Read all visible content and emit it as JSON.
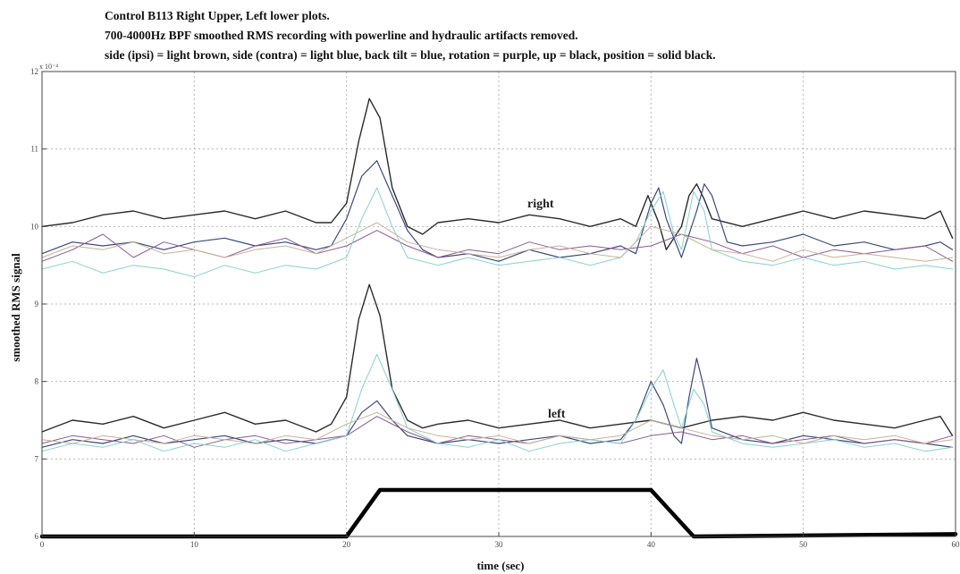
{
  "chart_data": {
    "type": "line",
    "title_lines": [
      "Control B113 Right Upper, Left lower plots.",
      "700-4000Hz BPF smoothed RMS recording with powerline and hydraulic artifacts removed.",
      "side (ipsi) = light brown, side (contra) = light blue, back tilt = blue, rotation = purple, up = black, position = solid black."
    ],
    "xlabel": "time (sec)",
    "ylabel": "smoothed RMS signal",
    "y_exponent_label": "x 10⁻⁴",
    "xlim": [
      0,
      60
    ],
    "ylim": [
      6,
      12
    ],
    "x_ticks": [
      0,
      10,
      20,
      30,
      40,
      50,
      60
    ],
    "x_tick_labels": [
      "0",
      "10",
      "20",
      "30",
      "40",
      "50",
      "60"
    ],
    "y_ticks": [
      6,
      7,
      8,
      9,
      10,
      11,
      12
    ],
    "y_tick_labels": [
      "6",
      "7",
      "8",
      "9",
      "10",
      "11",
      "12"
    ],
    "grid": true,
    "annotations": [
      {
        "text": "right",
        "x": 32,
        "y": 10.3
      },
      {
        "text": "left",
        "x": 34,
        "y": 7.6
      }
    ],
    "colors": {
      "up": "#2b2b2b",
      "back_tilt": "#3b4a7a",
      "rotation": "#8a5a8e",
      "side_contra": "#86d0cf",
      "side_ipsi": "#c7b196",
      "position": "#000000",
      "grid": "#b5b5b5",
      "axis": "#444444"
    },
    "series": [
      {
        "key": "up_right",
        "color_key": "up",
        "width": 1.4,
        "x": [
          0,
          2,
          4,
          6,
          8,
          10,
          12,
          14,
          16,
          18,
          19,
          20,
          20.8,
          21.5,
          22.2,
          23,
          24,
          25,
          26,
          28,
          30,
          32,
          34,
          36,
          38,
          39,
          39.8,
          40.5,
          41,
          42,
          42.5,
          43,
          43.5,
          44,
          46,
          48,
          50,
          52,
          54,
          56,
          58,
          59,
          59.8
        ],
        "y": [
          10.0,
          10.05,
          10.15,
          10.2,
          10.1,
          10.15,
          10.2,
          10.1,
          10.2,
          10.05,
          10.05,
          10.3,
          11.1,
          11.65,
          11.4,
          10.5,
          10.0,
          9.9,
          10.05,
          10.1,
          10.05,
          10.15,
          10.1,
          10.0,
          10.1,
          10.0,
          10.4,
          10.05,
          9.7,
          10.0,
          10.4,
          10.55,
          10.35,
          10.1,
          10.0,
          10.1,
          10.2,
          10.1,
          10.2,
          10.15,
          10.1,
          10.2,
          9.85
        ]
      },
      {
        "key": "back_tilt_right",
        "color_key": "back_tilt",
        "width": 1.2,
        "x": [
          0,
          2,
          4,
          6,
          8,
          10,
          12,
          14,
          16,
          18,
          19,
          20,
          21,
          22,
          23,
          24,
          25,
          26,
          28,
          30,
          32,
          34,
          36,
          38,
          39,
          40,
          40.5,
          41,
          42,
          43,
          43.5,
          44,
          45,
          46,
          48,
          50,
          52,
          54,
          56,
          58,
          59,
          59.8
        ],
        "y": [
          9.65,
          9.8,
          9.75,
          9.8,
          9.7,
          9.8,
          9.85,
          9.75,
          9.8,
          9.7,
          9.75,
          10.1,
          10.65,
          10.85,
          10.4,
          9.95,
          9.7,
          9.6,
          9.65,
          9.55,
          9.7,
          9.6,
          9.65,
          9.75,
          9.65,
          10.3,
          10.5,
          10.1,
          9.6,
          10.2,
          10.55,
          10.4,
          9.8,
          9.75,
          9.8,
          9.9,
          9.75,
          9.8,
          9.7,
          9.75,
          9.8,
          9.7
        ]
      },
      {
        "key": "rotation_right",
        "color_key": "rotation",
        "width": 1.0,
        "x": [
          0,
          2,
          4,
          6,
          8,
          10,
          12,
          14,
          16,
          18,
          20,
          22,
          24,
          26,
          28,
          30,
          32,
          34,
          36,
          38,
          40,
          42,
          44,
          46,
          48,
          50,
          52,
          54,
          56,
          58,
          59.8
        ],
        "y": [
          9.55,
          9.7,
          9.9,
          9.6,
          9.8,
          9.7,
          9.6,
          9.75,
          9.85,
          9.65,
          9.75,
          9.95,
          9.75,
          9.6,
          9.7,
          9.65,
          9.8,
          9.7,
          9.75,
          9.7,
          9.75,
          9.9,
          9.8,
          9.65,
          9.75,
          9.6,
          9.7,
          9.65,
          9.7,
          9.75,
          9.55
        ]
      },
      {
        "key": "side_contra_right",
        "color_key": "side_contra",
        "width": 1.0,
        "x": [
          0,
          2,
          4,
          6,
          8,
          10,
          12,
          14,
          16,
          18,
          20,
          21,
          22,
          23,
          24,
          26,
          28,
          30,
          32,
          34,
          36,
          38,
          39,
          40,
          40.8,
          41.5,
          42,
          42.8,
          43.5,
          44,
          46,
          48,
          50,
          52,
          54,
          56,
          58,
          59.8
        ],
        "y": [
          9.45,
          9.55,
          9.4,
          9.5,
          9.45,
          9.35,
          9.5,
          9.4,
          9.5,
          9.45,
          9.6,
          10.1,
          10.5,
          10.0,
          9.6,
          9.5,
          9.6,
          9.5,
          9.55,
          9.6,
          9.5,
          9.6,
          9.8,
          10.2,
          10.45,
          9.9,
          9.7,
          10.45,
          10.2,
          9.7,
          9.55,
          9.5,
          9.6,
          9.5,
          9.55,
          9.45,
          9.5,
          9.45
        ]
      },
      {
        "key": "side_ipsi_right",
        "color_key": "side_ipsi",
        "width": 1.0,
        "x": [
          0,
          2,
          4,
          6,
          8,
          10,
          12,
          14,
          16,
          18,
          20,
          22,
          24,
          26,
          28,
          30,
          32,
          34,
          36,
          38,
          40,
          42,
          44,
          46,
          48,
          50,
          52,
          54,
          56,
          58,
          59.8
        ],
        "y": [
          9.6,
          9.75,
          9.7,
          9.8,
          9.65,
          9.7,
          9.6,
          9.7,
          9.75,
          9.65,
          9.85,
          10.05,
          9.8,
          9.7,
          9.65,
          9.6,
          9.7,
          9.75,
          9.65,
          9.6,
          10.0,
          9.9,
          9.7,
          9.65,
          9.55,
          9.7,
          9.6,
          9.65,
          9.6,
          9.55,
          9.6
        ]
      },
      {
        "key": "up_left",
        "color_key": "up",
        "width": 1.4,
        "x": [
          0,
          2,
          4,
          6,
          8,
          10,
          12,
          14,
          16,
          18,
          19,
          20,
          20.8,
          21.5,
          22.2,
          23,
          24,
          25,
          26,
          28,
          30,
          32,
          34,
          36,
          38,
          40,
          42,
          44,
          46,
          48,
          50,
          52,
          54,
          56,
          58,
          59,
          59.8
        ],
        "y": [
          7.35,
          7.5,
          7.45,
          7.55,
          7.4,
          7.5,
          7.6,
          7.45,
          7.5,
          7.35,
          7.45,
          7.8,
          8.8,
          9.25,
          8.85,
          7.9,
          7.5,
          7.4,
          7.45,
          7.5,
          7.4,
          7.45,
          7.5,
          7.4,
          7.45,
          7.5,
          7.4,
          7.5,
          7.55,
          7.5,
          7.6,
          7.5,
          7.45,
          7.4,
          7.5,
          7.55,
          7.3
        ]
      },
      {
        "key": "back_tilt_left",
        "color_key": "back_tilt",
        "width": 1.2,
        "x": [
          0,
          2,
          4,
          6,
          8,
          10,
          12,
          14,
          16,
          18,
          20,
          21,
          22,
          23,
          24,
          26,
          28,
          30,
          32,
          34,
          36,
          38,
          39,
          40,
          40.8,
          41.5,
          42,
          42.5,
          43,
          43.5,
          44,
          46,
          48,
          50,
          52,
          54,
          56,
          58,
          59.8
        ],
        "y": [
          7.15,
          7.25,
          7.2,
          7.3,
          7.2,
          7.25,
          7.3,
          7.2,
          7.25,
          7.2,
          7.3,
          7.6,
          7.75,
          7.5,
          7.3,
          7.2,
          7.25,
          7.2,
          7.25,
          7.3,
          7.2,
          7.25,
          7.5,
          8.0,
          7.7,
          7.3,
          7.2,
          7.8,
          8.3,
          7.9,
          7.4,
          7.25,
          7.2,
          7.3,
          7.25,
          7.2,
          7.25,
          7.2,
          7.15
        ]
      },
      {
        "key": "rotation_left",
        "color_key": "rotation",
        "width": 1.0,
        "x": [
          0,
          2,
          4,
          6,
          8,
          10,
          12,
          14,
          16,
          18,
          20,
          22,
          24,
          26,
          28,
          30,
          32,
          34,
          36,
          38,
          40,
          42,
          44,
          46,
          48,
          50,
          52,
          54,
          56,
          58,
          59.8
        ],
        "y": [
          7.2,
          7.3,
          7.25,
          7.2,
          7.3,
          7.15,
          7.25,
          7.3,
          7.2,
          7.25,
          7.3,
          7.55,
          7.35,
          7.2,
          7.3,
          7.25,
          7.2,
          7.3,
          7.25,
          7.2,
          7.3,
          7.35,
          7.25,
          7.3,
          7.2,
          7.25,
          7.3,
          7.2,
          7.25,
          7.2,
          7.3
        ]
      },
      {
        "key": "side_contra_left",
        "color_key": "side_contra",
        "width": 1.0,
        "x": [
          0,
          2,
          4,
          6,
          8,
          10,
          12,
          14,
          16,
          18,
          20,
          21,
          22,
          23,
          24,
          26,
          28,
          30,
          32,
          34,
          36,
          38,
          39,
          40,
          40.8,
          41.5,
          42,
          42.8,
          43.5,
          44,
          46,
          48,
          50,
          52,
          54,
          56,
          58,
          59.8
        ],
        "y": [
          7.1,
          7.2,
          7.15,
          7.25,
          7.1,
          7.2,
          7.15,
          7.25,
          7.1,
          7.2,
          7.3,
          7.9,
          8.35,
          7.9,
          7.4,
          7.2,
          7.15,
          7.25,
          7.1,
          7.2,
          7.25,
          7.2,
          7.5,
          7.9,
          8.15,
          7.7,
          7.4,
          7.9,
          7.7,
          7.35,
          7.2,
          7.15,
          7.2,
          7.25,
          7.15,
          7.2,
          7.1,
          7.15
        ]
      },
      {
        "key": "side_ipsi_left",
        "color_key": "side_ipsi",
        "width": 1.0,
        "x": [
          0,
          2,
          4,
          6,
          8,
          10,
          12,
          14,
          16,
          18,
          20,
          22,
          24,
          26,
          28,
          30,
          32,
          34,
          36,
          38,
          40,
          42,
          44,
          46,
          48,
          50,
          52,
          54,
          56,
          58,
          59.8
        ],
        "y": [
          7.25,
          7.2,
          7.3,
          7.25,
          7.2,
          7.3,
          7.25,
          7.2,
          7.3,
          7.25,
          7.45,
          7.6,
          7.4,
          7.3,
          7.25,
          7.3,
          7.2,
          7.3,
          7.25,
          7.3,
          7.5,
          7.4,
          7.3,
          7.25,
          7.3,
          7.2,
          7.3,
          7.25,
          7.3,
          7.2,
          7.25
        ]
      },
      {
        "key": "position",
        "color_key": "position",
        "width": 4.5,
        "x": [
          0,
          20,
          22.2,
          40,
          42.8,
          60
        ],
        "y": [
          6.0,
          6.0,
          6.6,
          6.6,
          6.0,
          6.03
        ]
      }
    ]
  }
}
